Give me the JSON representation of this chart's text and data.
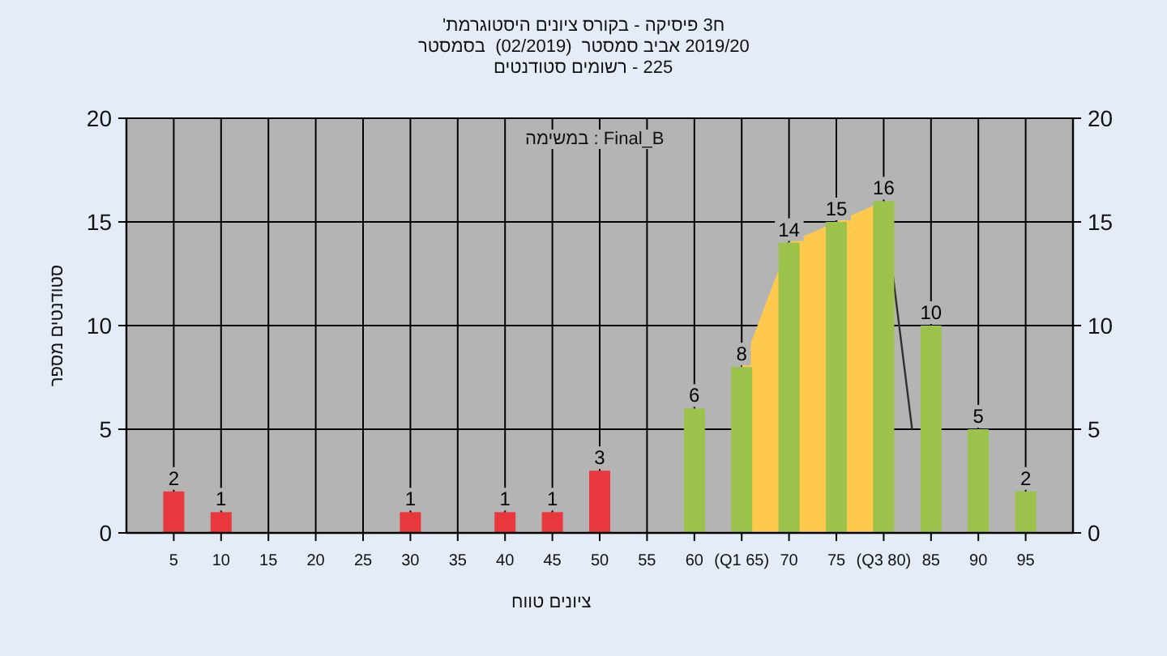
{
  "chart_data": {
    "type": "bar",
    "title": "'היסטוגרמת ציונים בקורס - פיסיקה 3ח",
    "subtitle": "בסמסטר  (02/2019)  סמסטר אביב 2019/20",
    "annotations": [
      "סטודנטים רשומים - 225",
      "במשימה : Final_B"
    ],
    "xlabel": "טווח ציונים",
    "ylabel": "מספר סטודנטים",
    "xlim": [
      0,
      100
    ],
    "xticks": [
      5,
      10,
      15,
      20,
      25,
      30,
      35,
      40,
      45,
      50,
      55,
      60,
      {
        "value": 65,
        "label": "(Q1 65)"
      },
      70,
      75,
      {
        "value": 80,
        "label": "(Q3 80)"
      },
      85,
      90,
      95
    ],
    "ylim": [
      0,
      20
    ],
    "yticks": [
      0,
      5,
      10,
      15,
      20
    ],
    "y2lim": [
      0,
      20
    ],
    "y2ticks": [
      0,
      5,
      10,
      15,
      20
    ],
    "grid": true,
    "series": [
      {
        "type": "area",
        "x": [
          65,
          70,
          75,
          80
        ],
        "values": [
          8,
          14,
          15,
          16
        ],
        "color": "#ffc94d"
      },
      {
        "type": "line",
        "x": [
          80,
          83
        ],
        "values": [
          16,
          5
        ],
        "color": "#303030"
      },
      {
        "x": [
          5,
          10,
          15,
          20,
          25,
          30,
          35,
          40,
          45,
          50,
          55,
          60,
          65,
          70,
          75,
          80,
          85,
          90,
          95
        ],
        "values": [
          2,
          1,
          0,
          0,
          0,
          1,
          0,
          1,
          1,
          3,
          0,
          6,
          8,
          14,
          15,
          16,
          10,
          5,
          2
        ],
        "colors": [
          "#e8383d",
          "#e8383d",
          "#e8383d",
          "#e8383d",
          "#e8383d",
          "#e8383d",
          "#e8383d",
          "#e8383d",
          "#e8383d",
          "#e8383d",
          "#9bc24a",
          "#9bc24a",
          "#9bc24a",
          "#9bc24a",
          "#9bc24a",
          "#9bc24a",
          "#9bc24a",
          "#9bc24a",
          "#9bc24a"
        ],
        "value_labels": [
          "2",
          "1",
          null,
          null,
          null,
          "1",
          null,
          "1",
          "1",
          "3",
          null,
          "6",
          "8",
          "14",
          "15",
          "16",
          "10",
          "5",
          "2"
        ]
      }
    ]
  }
}
